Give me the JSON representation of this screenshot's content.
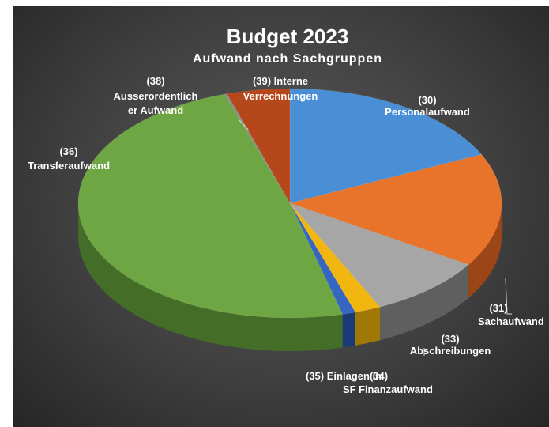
{
  "chart_data": {
    "type": "pie",
    "title": "Budget 2023",
    "subtitle": "Aufwand nach Sachgruppen",
    "slices": [
      {
        "label": "(30) Personalaufwand",
        "value": 18,
        "color": "#4a8ed6",
        "side": "#2e639c"
      },
      {
        "label": "(31) Sachaufwand",
        "value": 16,
        "color": "#e8742c",
        "side": "#9c4516"
      },
      {
        "label": "(33) Abschreibungen",
        "value": 9,
        "color": "#a6a6a6",
        "side": "#5f5f5f"
      },
      {
        "label": "(34) Finanzaufwand",
        "value": 2,
        "color": "#f2b611",
        "side": "#a07806"
      },
      {
        "label": "(35) Einlagen in SF",
        "value": 1,
        "color": "#3466c2",
        "side": "#1b3b78"
      },
      {
        "label": "(36) Transferaufwand",
        "value": 49,
        "color": "#6da642",
        "side": "#446d27"
      },
      {
        "label": "(38) Ausserordentlicher Aufwand",
        "value": 0.2,
        "color": "#8c8c8c",
        "side": "#555555"
      },
      {
        "label": "(39) Interne Verrechnungen",
        "value": 4.8,
        "color": "#b5471a",
        "side": "#76290a"
      }
    ]
  },
  "labels": {
    "l30": [
      "(30)",
      "Personalaufwand"
    ],
    "l31": [
      "(31)",
      "Sachaufwand"
    ],
    "l33": [
      "(33)",
      "Abschreibungen"
    ],
    "l34": [
      "(34)",
      "Finanzaufwand"
    ],
    "l35": [
      "(35) Einlagen in",
      "SF"
    ],
    "l36": [
      "(36)",
      "Transferaufwand"
    ],
    "l38": [
      "(38)",
      "Ausserordentlich",
      "er Aufwand"
    ],
    "l39": [
      "(39) Interne",
      "Verrechnungen"
    ]
  }
}
